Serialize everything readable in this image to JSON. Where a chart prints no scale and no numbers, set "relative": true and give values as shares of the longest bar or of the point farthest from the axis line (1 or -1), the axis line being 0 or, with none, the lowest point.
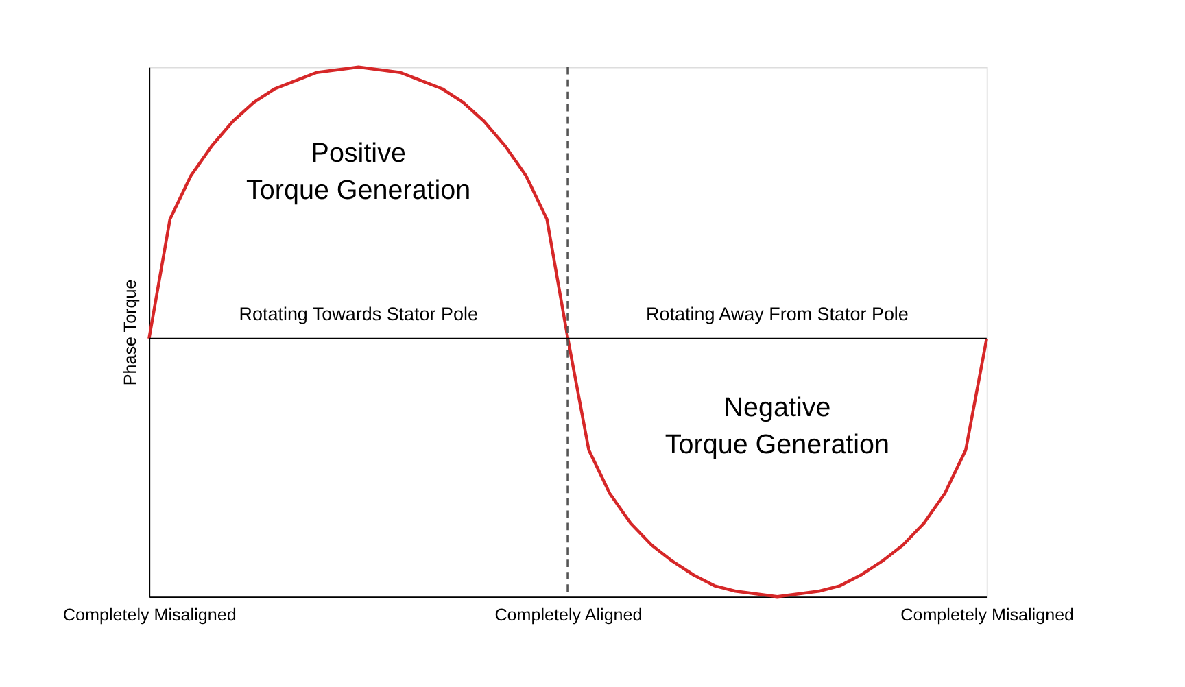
{
  "chart_data": {
    "type": "line",
    "relative": true,
    "ylabel": "Phase Torque",
    "categories": [
      "Completely Misaligned",
      null,
      null,
      null,
      null,
      null,
      null,
      null,
      null,
      null,
      null,
      null,
      null,
      null,
      null,
      null,
      null,
      null,
      null,
      null,
      "Completely Aligned",
      null,
      null,
      null,
      null,
      null,
      null,
      null,
      null,
      null,
      null,
      null,
      null,
      null,
      null,
      null,
      null,
      null,
      null,
      null,
      "Completely Misaligned"
    ],
    "series": [
      {
        "color": "#d62728",
        "values": [
          0,
          0.44,
          0.6,
          0.71,
          0.8,
          0.87,
          0.92,
          0.95,
          0.98,
          0.99,
          1,
          0.99,
          0.98,
          0.95,
          0.92,
          0.87,
          0.8,
          0.71,
          0.6,
          0.44,
          0,
          -0.41,
          -0.57,
          -0.68,
          -0.76,
          -0.82,
          -0.87,
          -0.91,
          -0.93,
          -0.94,
          -0.95,
          -0.94,
          -0.93,
          -0.91,
          -0.87,
          -0.82,
          -0.76,
          -0.68,
          -0.57,
          -0.41,
          0
        ]
      }
    ],
    "ref_lines": [
      {
        "axis": "x",
        "value": "Completely Aligned",
        "color": "#555555",
        "line_style": "dashed"
      },
      {
        "axis": "y",
        "value": 0,
        "color": "#000000",
        "line_style": "solid"
      }
    ],
    "annotations": [
      "Positive\nTorque Generation",
      "Rotating Towards Stator Pole",
      "Rotating Away From Stator Pole",
      "Negative\nTorque Generation"
    ],
    "grid": false,
    "marker": "none",
    "line_style": "solid"
  }
}
